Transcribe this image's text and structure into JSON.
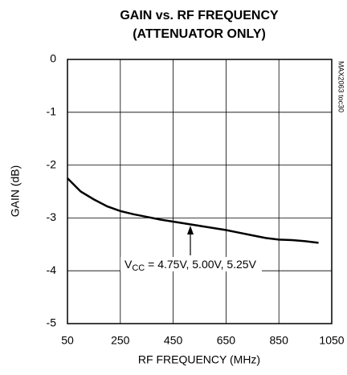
{
  "chart_data": {
    "type": "line",
    "title": "GAIN vs. RF FREQUENCY",
    "subtitle": "(ATTENUATOR ONLY)",
    "x_label": "RF FREQUENCY (MHz)",
    "y_label": "GAIN (dB)",
    "side_note": "MAX2063 toc30",
    "annotation": {
      "main": "V",
      "subscript": "CC",
      "rest": " = 4.75V, 5.00V, 5.25V"
    },
    "x": [
      50,
      100,
      150,
      200,
      250,
      300,
      350,
      400,
      450,
      500,
      550,
      600,
      650,
      700,
      750,
      800,
      850,
      900,
      950,
      1000
    ],
    "series": [
      {
        "color": "#000000",
        "values": [
          -2.25,
          -2.5,
          -2.65,
          -2.78,
          -2.87,
          -2.93,
          -2.98,
          -3.03,
          -3.07,
          -3.11,
          -3.15,
          -3.19,
          -3.23,
          -3.28,
          -3.33,
          -3.38,
          -3.41,
          -3.42,
          -3.44,
          -3.47
        ]
      }
    ],
    "xlim": [
      50,
      1050
    ],
    "xticks": [
      50,
      250,
      450,
      650,
      850,
      1050
    ],
    "ylim": [
      -5,
      0
    ],
    "yticks": [
      0,
      -1,
      -2,
      -3,
      -4,
      -5
    ],
    "grid": true
  }
}
